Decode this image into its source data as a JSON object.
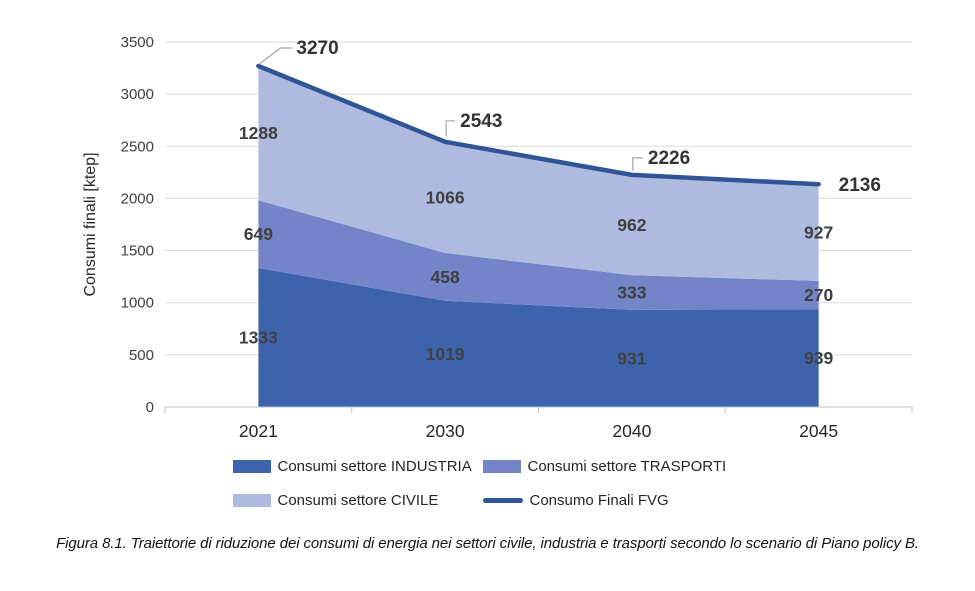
{
  "chart_data": {
    "type": "area",
    "stacked": true,
    "categories": [
      "2021",
      "2030",
      "2040",
      "2045"
    ],
    "series": [
      {
        "name": "Consumi settore INDUSTRIA",
        "values": [
          1333,
          1019,
          931,
          939
        ],
        "color": "#3E63AD"
      },
      {
        "name": "Consumi settore TRASPORTI",
        "values": [
          649,
          458,
          333,
          270
        ],
        "color": "#7384C8"
      },
      {
        "name": "Consumi settore CIVILE",
        "values": [
          1288,
          1066,
          962,
          927
        ],
        "color": "#AFBADF"
      }
    ],
    "line_series": {
      "name": "Consumo Finali FVG",
      "values": [
        3270,
        2543,
        2226,
        2136
      ],
      "color": "#2F5597"
    },
    "ylabel": "Consumi finali [ktep]",
    "xlabel": "",
    "ylim": [
      0,
      3500
    ],
    "yticks": [
      0,
      500,
      1000,
      1500,
      2000,
      2500,
      3000,
      3500
    ],
    "grid": true,
    "legend_position": "bottom",
    "colors": {
      "gridline": "#D9D9D9",
      "axis": "#BFBFBF",
      "leader": "#A6A6A6",
      "data_label": "#404040",
      "total_label": "#333333",
      "tick_label": "#404040",
      "category_label": "#262626",
      "ylabel": "#262626"
    }
  },
  "caption": "Figura 8.1. Traiettorie di riduzione dei consumi di energia nei settori civile, industria e trasporti secondo lo scenario di Piano policy B."
}
